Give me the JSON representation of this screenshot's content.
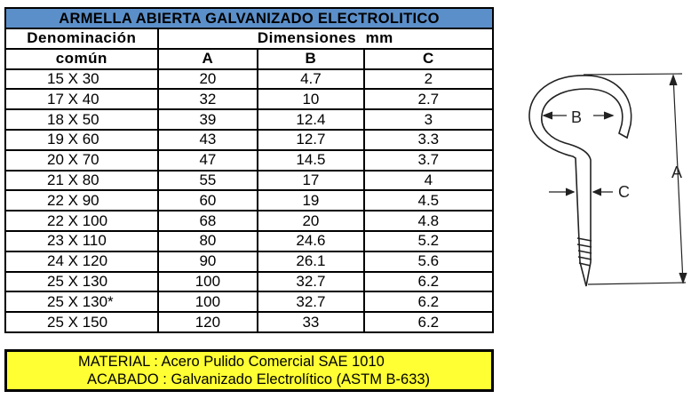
{
  "title": "ARMELLA ABIERTA GALVANIZADO ELECTROLITICO",
  "headers": {
    "denominacion_line1": "Denominación",
    "denominacion_line2": "común",
    "dimensiones": "Dimensiones  mm",
    "a": "A",
    "b": "B",
    "c": "C"
  },
  "rows": [
    [
      "15 X 30",
      "20",
      "4.7",
      "2"
    ],
    [
      "17 X 40",
      "32",
      "10",
      "2.7"
    ],
    [
      "18 X 50",
      "39",
      "12.4",
      "3"
    ],
    [
      "19 X 60",
      "43",
      "12.7",
      "3.3"
    ],
    [
      "20 X 70",
      "47",
      "14.5",
      "3.7"
    ],
    [
      "21 X 80",
      "55",
      "17",
      "4"
    ],
    [
      "22 X 90",
      "60",
      "19",
      "4.5"
    ],
    [
      "22 X 100",
      "68",
      "20",
      "4.8"
    ],
    [
      "23 X 110",
      "80",
      "24.6",
      "5.2"
    ],
    [
      "24 X 120",
      "90",
      "26.1",
      "5.6"
    ],
    [
      "25 X 130",
      "100",
      "32.7",
      "6.2"
    ],
    [
      "25 X 130*",
      "100",
      "32.7",
      "6.2"
    ],
    [
      "25 X 150",
      "120",
      "33",
      "6.2"
    ]
  ],
  "note": {
    "material": "MATERIAL  : Acero  Pulido Comercial SAE 1010",
    "acabado": "ACABADO  : Galvanizado Electrolítico (ASTM B-633)"
  },
  "diagram": {
    "label_a": "A",
    "label_b": "B",
    "label_c": "C"
  },
  "colors": {
    "title_bg": "#5b8fc9",
    "note_bg": "#ffff33"
  }
}
